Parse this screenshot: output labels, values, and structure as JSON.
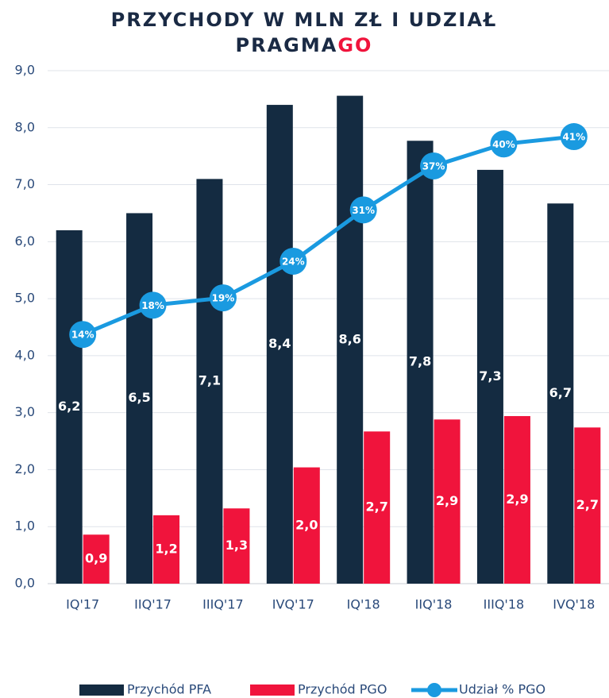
{
  "chart_data": {
    "type": "bar",
    "title": [
      "PRZYCHODY W MLN ZŁ I UDZIAŁ",
      "PRAGMA",
      "GO"
    ],
    "categories": [
      "IQ'17",
      "IIQ'17",
      "IIIQ'17",
      "IVQ'17",
      "IQ'18",
      "IIQ'18",
      "IIIQ'18",
      "IVQ'18"
    ],
    "series": [
      {
        "name": "Przychód PFA",
        "color": "#142b41",
        "type": "bar",
        "values": [
          6.2,
          6.5,
          7.1,
          8.4,
          8.56,
          7.77,
          7.26,
          6.67
        ],
        "value_labels": [
          "6,2",
          "6,5",
          "7,1",
          "8,4",
          "8,6",
          "7,8",
          "7,3",
          "6,7"
        ]
      },
      {
        "name": "Przychód PGO",
        "color": "#f0143c",
        "type": "bar",
        "values": [
          0.86,
          1.2,
          1.32,
          2.04,
          2.67,
          2.88,
          2.94,
          2.74
        ],
        "value_labels": [
          "0,9",
          "1,2",
          "1,3",
          "2,0",
          "2,7",
          "2,9",
          "2,9",
          "2,7"
        ]
      },
      {
        "name": "Udział % PGO",
        "color": "#1a9ae0",
        "type": "line",
        "axis": "y2",
        "values": [
          14,
          18,
          19,
          24,
          31,
          37,
          40,
          41
        ],
        "value_labels": [
          "14%",
          "18%",
          "19%",
          "24%",
          "31%",
          "37%",
          "40%",
          "41%"
        ]
      }
    ],
    "ylim": [
      0,
      9
    ],
    "yticks": [
      {
        "value": 0,
        "label": "0,0"
      },
      {
        "value": 1,
        "label": "1,0"
      },
      {
        "value": 2,
        "label": "2,0"
      },
      {
        "value": 3,
        "label": "3,0"
      },
      {
        "value": 4,
        "label": "4,0"
      },
      {
        "value": 5,
        "label": "5,0"
      },
      {
        "value": 6,
        "label": "6,0"
      },
      {
        "value": 7,
        "label": "7,0"
      },
      {
        "value": 8,
        "label": "8,0"
      },
      {
        "value": 9,
        "label": "9,0"
      }
    ],
    "y2lim": [
      -20,
      50
    ],
    "grid": true,
    "legend": "bottom"
  }
}
